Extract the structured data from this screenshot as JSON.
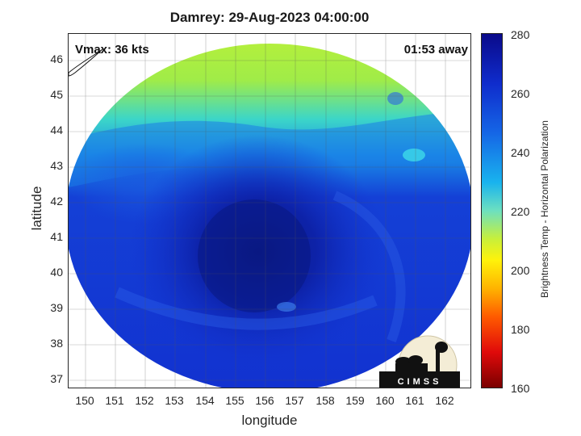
{
  "title": "Damrey: 29-Aug-2023 04:00:00",
  "vmax_label": "Vmax: 36 kts",
  "time_away_label": "01:53 away",
  "x_axis": {
    "label": "longitude",
    "ticks": [
      "150",
      "151",
      "152",
      "153",
      "154",
      "155",
      "156",
      "157",
      "158",
      "159",
      "160",
      "161",
      "162"
    ],
    "range": [
      149.4,
      162.8
    ]
  },
  "y_axis": {
    "label": "latitude",
    "ticks": [
      "46",
      "45",
      "44",
      "43",
      "42",
      "41",
      "40",
      "39",
      "38",
      "37"
    ],
    "range": [
      36.7,
      46.7
    ]
  },
  "colorbar": {
    "label": "Brightness Temp - Horizontal Polarization",
    "ticks": [
      "280",
      "260",
      "240",
      "220",
      "200",
      "180",
      "160"
    ],
    "range": [
      160,
      280
    ]
  },
  "logo": {
    "text": "CIMSS"
  },
  "colors": {
    "cold_core": "#0a1a8c",
    "blue_field": "#1434d8",
    "cyan": "#22c8e6",
    "warm_north": "#b4ee3c"
  }
}
